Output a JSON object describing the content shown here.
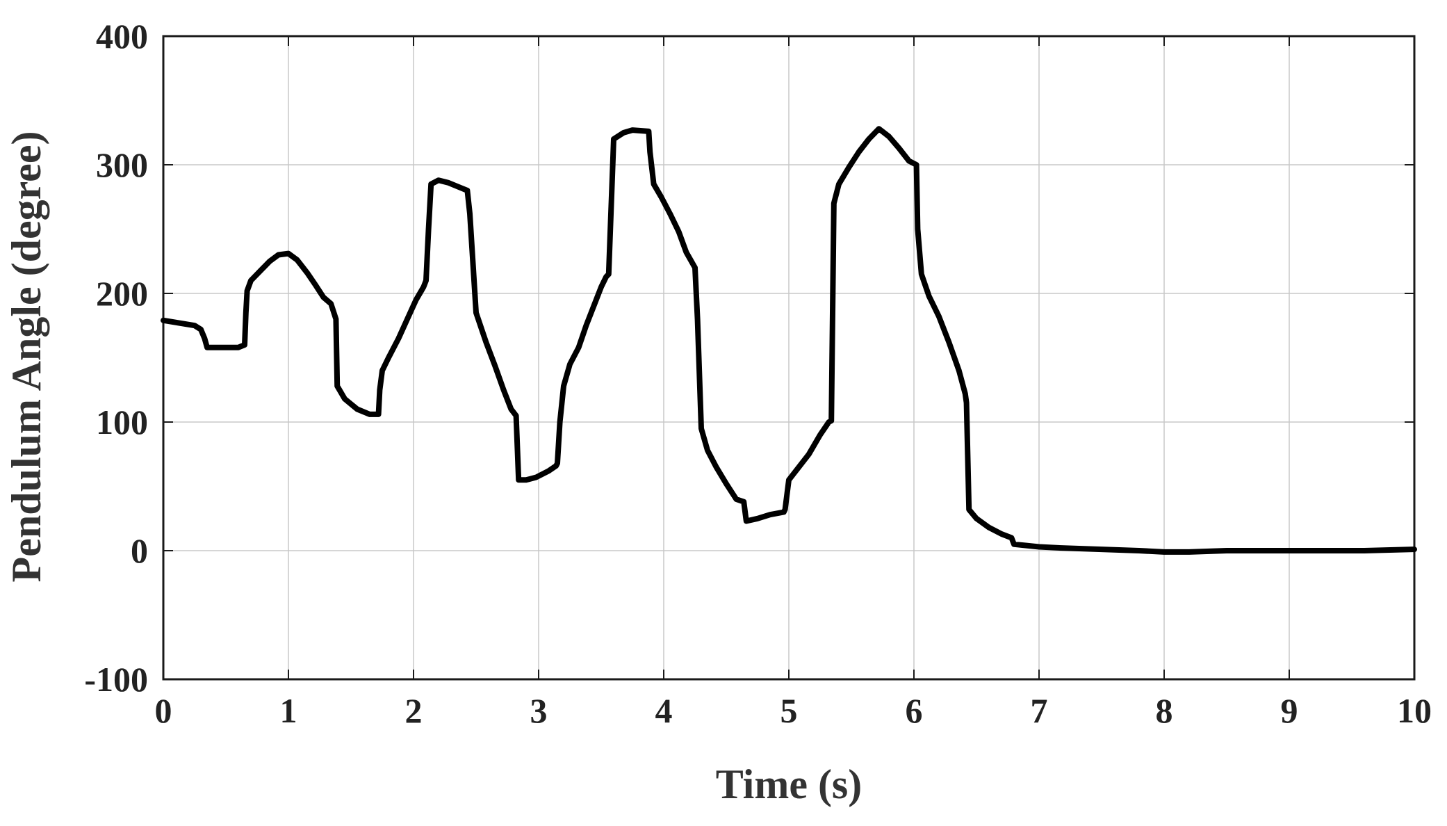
{
  "chart_data": {
    "type": "line",
    "title": "",
    "xlabel": "Time (s)",
    "ylabel": "Pendulum Angle (degree)",
    "xlim": [
      0,
      10
    ],
    "ylim": [
      -100,
      400
    ],
    "xticks": [
      0,
      1,
      2,
      3,
      4,
      5,
      6,
      7,
      8,
      9,
      10
    ],
    "yticks": [
      -100,
      0,
      100,
      200,
      300,
      400
    ],
    "xtick_labels": [
      "0",
      "1",
      "2",
      "3",
      "4",
      "5",
      "6",
      "7",
      "8",
      "9",
      "10"
    ],
    "ytick_labels": [
      "-100",
      "0",
      "100",
      "200",
      "300",
      "400"
    ],
    "grid": true,
    "line_color": "#000000",
    "series": [
      {
        "x": [
          0,
          0.25,
          0.3,
          0.33,
          0.35,
          0.6,
          0.65,
          0.66,
          0.67,
          0.7,
          0.78,
          0.85,
          0.92,
          1.0,
          1.07,
          1.15,
          1.22,
          1.28,
          1.34,
          1.38,
          1.39,
          1.45,
          1.55,
          1.65,
          1.72,
          1.73,
          1.75,
          1.8,
          1.88,
          1.95,
          2.02,
          2.08,
          2.1,
          2.12,
          2.14,
          2.2,
          2.28,
          2.38,
          2.43,
          2.45,
          2.5,
          2.58,
          2.65,
          2.72,
          2.78,
          2.82,
          2.83,
          2.84,
          2.9,
          2.98,
          3.08,
          3.14,
          3.15,
          3.17,
          3.2,
          3.25,
          3.32,
          3.38,
          3.44,
          3.5,
          3.54,
          3.56,
          3.6,
          3.68,
          3.75,
          3.88,
          3.89,
          3.92,
          3.98,
          4.05,
          4.12,
          4.18,
          4.25,
          4.27,
          4.3,
          4.35,
          4.42,
          4.5,
          4.58,
          4.64,
          4.66,
          4.75,
          4.85,
          4.96,
          4.97,
          5.0,
          5.08,
          5.16,
          5.25,
          5.32,
          5.34,
          5.36,
          5.4,
          5.48,
          5.56,
          5.64,
          5.72,
          5.8,
          5.88,
          5.96,
          6.02,
          6.03,
          6.06,
          6.12,
          6.2,
          6.28,
          6.36,
          6.41,
          6.42,
          6.44,
          6.5,
          6.6,
          6.7,
          6.78,
          6.8,
          6.9,
          7.0,
          7.2,
          7.5,
          7.8,
          8.0,
          8.2,
          8.5,
          8.8,
          9.0,
          9.3,
          9.6,
          10.0
        ],
        "y": [
          179,
          175,
          172,
          165,
          158,
          158,
          160,
          185,
          202,
          210,
          218,
          225,
          230,
          231,
          226,
          216,
          206,
          197,
          192,
          180,
          128,
          118,
          110,
          106,
          106,
          125,
          140,
          150,
          165,
          180,
          195,
          205,
          210,
          250,
          285,
          288,
          286,
          282,
          280,
          262,
          185,
          162,
          144,
          125,
          110,
          105,
          80,
          55,
          55,
          57,
          62,
          66,
          68,
          100,
          128,
          145,
          158,
          175,
          190,
          205,
          213,
          215,
          320,
          325,
          327,
          326,
          310,
          285,
          275,
          262,
          248,
          232,
          220,
          180,
          95,
          78,
          65,
          52,
          40,
          38,
          23,
          25,
          28,
          30,
          32,
          55,
          65,
          75,
          90,
          100,
          101,
          270,
          285,
          298,
          310,
          320,
          328,
          322,
          313,
          303,
          300,
          250,
          215,
          198,
          182,
          162,
          140,
          122,
          115,
          32,
          25,
          18,
          13,
          10,
          5,
          4,
          3,
          2,
          1,
          0,
          -1,
          -1,
          0,
          0,
          0,
          0,
          0,
          1
        ]
      }
    ]
  }
}
